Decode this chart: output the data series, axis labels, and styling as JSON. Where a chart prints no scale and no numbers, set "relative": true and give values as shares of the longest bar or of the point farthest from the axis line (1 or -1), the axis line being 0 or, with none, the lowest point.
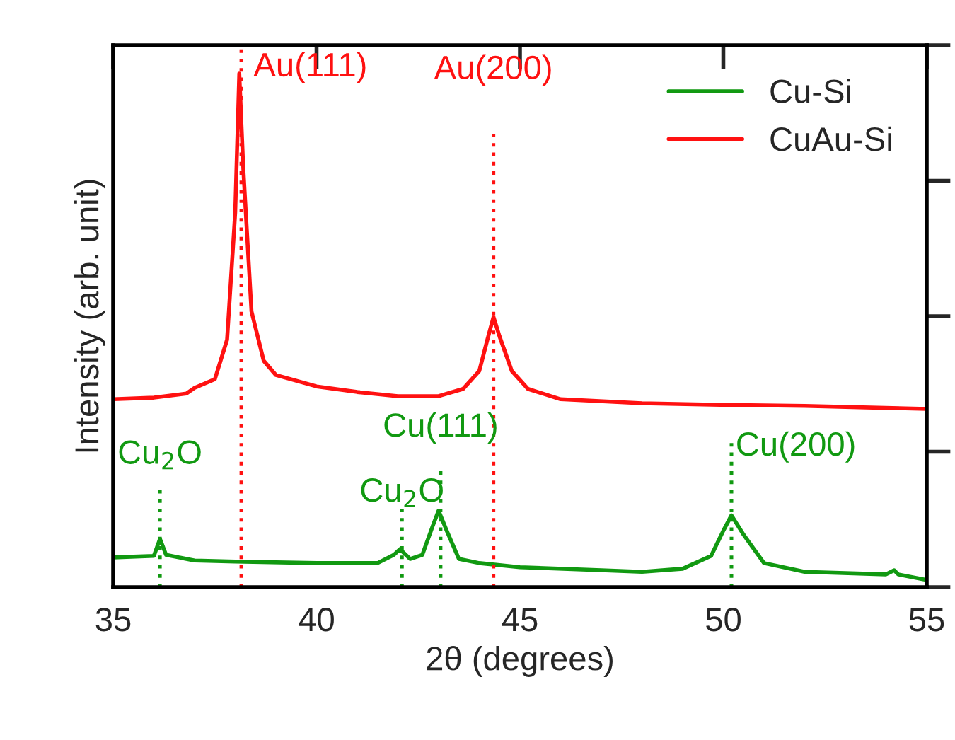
{
  "chart_data": {
    "type": "line",
    "xlabel": "2θ (degrees)",
    "ylabel": "Intensity (arb. unit)",
    "relative": true,
    "xlim": [
      35,
      55
    ],
    "xticks": [
      35,
      40,
      45,
      50,
      55
    ],
    "tick_labels": "x",
    "legend": "top right",
    "grid": false,
    "line_style": "solid",
    "marker": "none",
    "series": [
      {
        "name": "Cu-Si",
        "color": "#119911",
        "x": [
          35,
          36.0,
          36.15,
          36.3,
          37,
          38,
          40,
          41.5,
          41.9,
          42.05,
          42.3,
          42.6,
          42.85,
          43.0,
          43.2,
          43.5,
          44,
          45,
          47,
          48,
          49,
          49.7,
          50.0,
          50.2,
          50.5,
          51,
          52,
          54,
          54.2,
          54.3,
          55
        ],
        "values": [
          0.058,
          0.061,
          0.094,
          0.063,
          0.052,
          0.05,
          0.047,
          0.047,
          0.063,
          0.074,
          0.055,
          0.063,
          0.118,
          0.149,
          0.11,
          0.055,
          0.047,
          0.039,
          0.033,
          0.03,
          0.036,
          0.061,
          0.11,
          0.14,
          0.102,
          0.047,
          0.03,
          0.025,
          0.033,
          0.025,
          0.014
        ]
      },
      {
        "name": "CuAu-Si",
        "color": "#ff1111",
        "x": [
          35,
          36,
          36.8,
          37,
          37.5,
          37.8,
          38.0,
          38.1,
          38.2,
          38.4,
          38.7,
          39,
          40,
          41,
          42,
          43,
          43.6,
          44.0,
          44.2,
          44.35,
          44.5,
          44.8,
          45.2,
          46,
          48,
          50,
          52,
          55
        ],
        "values": [
          0.366,
          0.369,
          0.377,
          0.388,
          0.405,
          0.482,
          0.73,
          1.0,
          0.813,
          0.537,
          0.441,
          0.413,
          0.391,
          0.38,
          0.372,
          0.372,
          0.386,
          0.421,
          0.482,
          0.526,
          0.488,
          0.421,
          0.386,
          0.366,
          0.358,
          0.355,
          0.353,
          0.347
        ]
      }
    ],
    "ref_lines": [
      {
        "axis": "x",
        "value": 36.15,
        "label": "Cu$_{2}$O",
        "color": "#119911",
        "line_style": "dotted"
      },
      {
        "axis": "x",
        "value": 38.15,
        "label": "Au(111)",
        "color": "#ff1111",
        "line_style": "dotted"
      },
      {
        "axis": "x",
        "value": 42.1,
        "label": "Cu$_{2}$O",
        "color": "#119911",
        "line_style": "dotted"
      },
      {
        "axis": "x",
        "value": 43.05,
        "label": "Cu(111)",
        "color": "#119911",
        "line_style": "dotted"
      },
      {
        "axis": "x",
        "value": 44.35,
        "label": "Au(200)",
        "color": "#ff1111",
        "line_style": "dotted"
      },
      {
        "axis": "x",
        "value": 50.2,
        "label": "Cu(200)",
        "color": "#119911",
        "line_style": "dotted"
      }
    ]
  }
}
